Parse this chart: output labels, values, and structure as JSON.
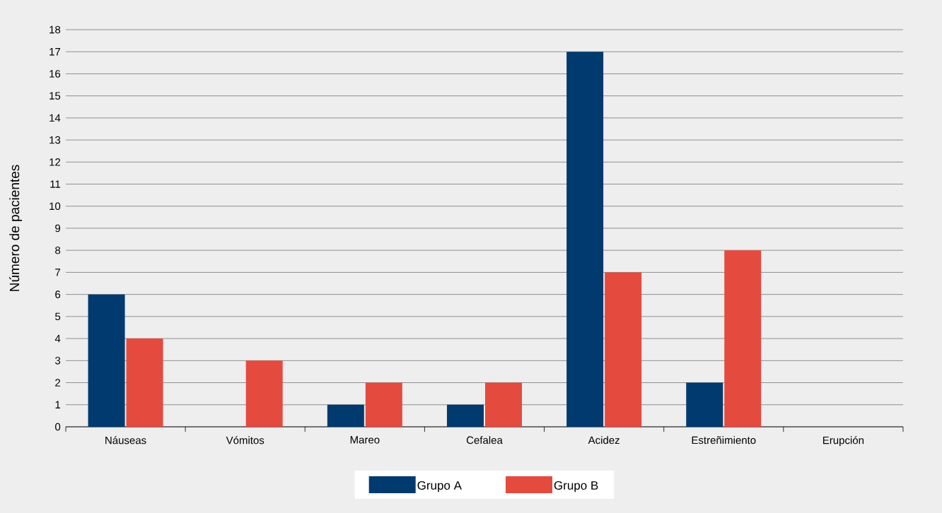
{
  "chart_data": {
    "type": "bar",
    "ylabel": "Número de pacientes",
    "categories": [
      "Náuseas",
      "Vómitos",
      "Mareo",
      "Cefalea",
      "Acidez",
      "Estreñimiento",
      "Erupción"
    ],
    "series": [
      {
        "name": "Grupo A",
        "color": "#003a6e",
        "values": [
          6,
          0,
          1,
          1,
          17,
          2,
          0
        ]
      },
      {
        "name": "Grupo B",
        "color": "#e54a3f",
        "values": [
          4,
          3,
          2,
          2,
          7,
          8,
          0
        ]
      }
    ],
    "ylim": [
      0,
      18
    ],
    "yticks": [
      0,
      1,
      2,
      3,
      4,
      5,
      6,
      7,
      8,
      9,
      10,
      11,
      12,
      13,
      14,
      15,
      16,
      17,
      18
    ],
    "grid": "y",
    "legend": "bottom"
  }
}
